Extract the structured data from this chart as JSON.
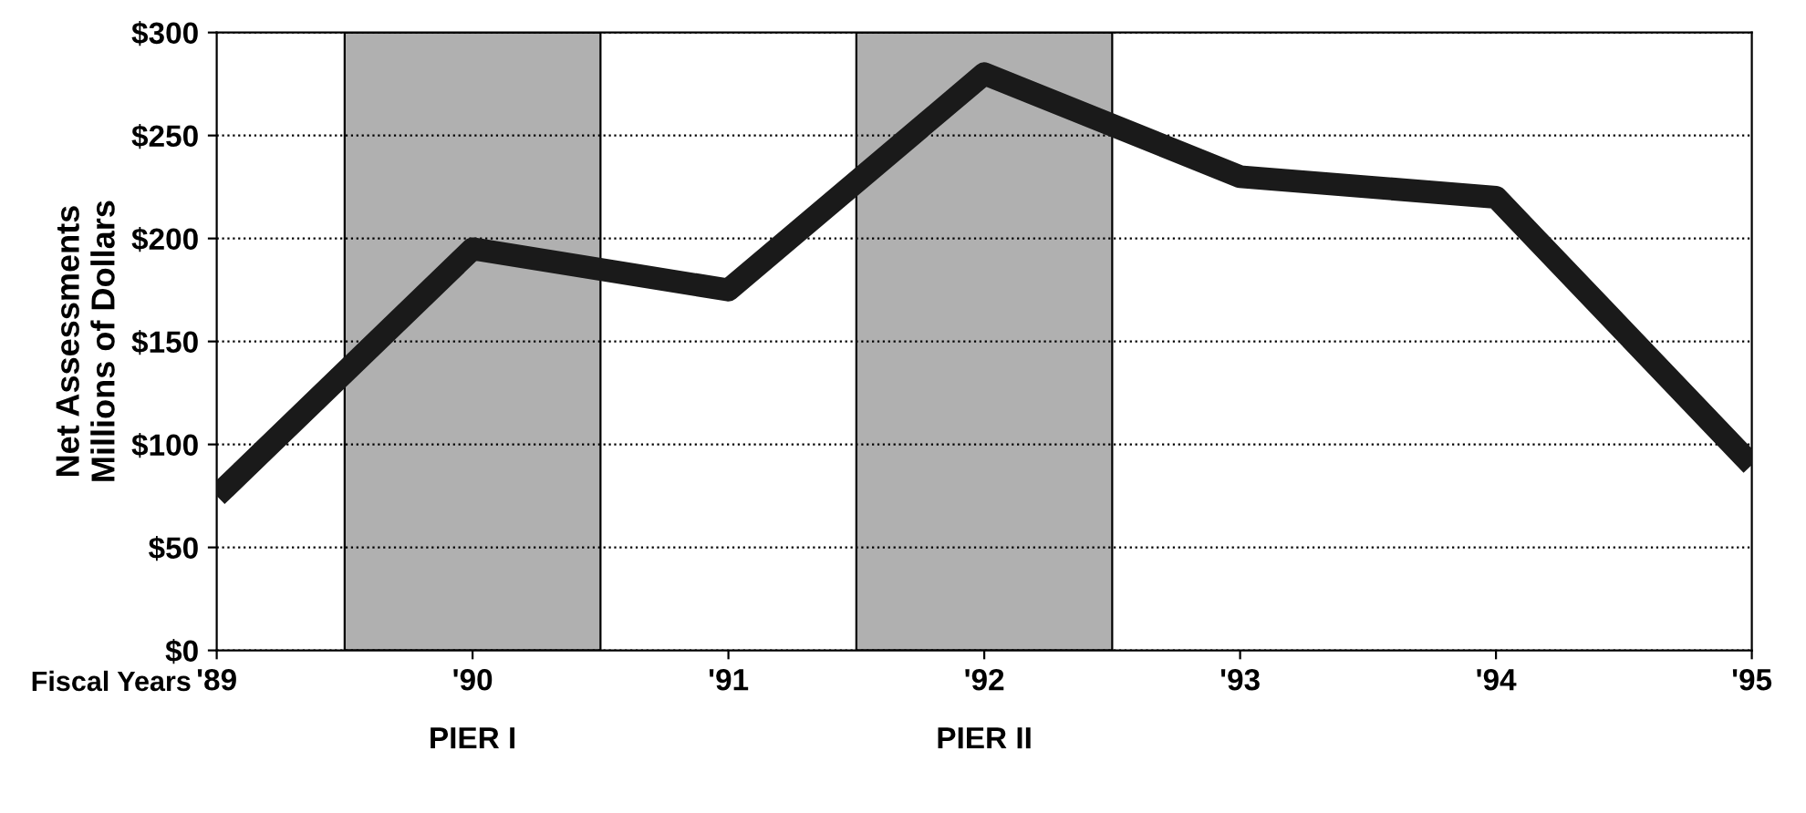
{
  "chart_data": {
    "type": "line",
    "xlabel": "Fiscal Years",
    "ylabel": "Net Assessments\nMillions of Dollars",
    "x": [
      1989,
      1990,
      1991,
      1992,
      1993,
      1994,
      1995
    ],
    "xlim": [
      1989,
      1995
    ],
    "xticks": [
      {
        "value": 1989,
        "label": "'89"
      },
      {
        "value": 1990,
        "label": "'90"
      },
      {
        "value": 1991,
        "label": "'91"
      },
      {
        "value": 1992,
        "label": "'92"
      },
      {
        "value": 1993,
        "label": "'93"
      },
      {
        "value": 1994,
        "label": "'94"
      },
      {
        "value": 1995,
        "label": "'95"
      }
    ],
    "series": [
      {
        "color": "#1a1a1a",
        "values": [
          75,
          195,
          175,
          280,
          230,
          220,
          90
        ]
      }
    ],
    "ylim": [
      0,
      300
    ],
    "yticks": [
      {
        "value": 0,
        "label": "$0"
      },
      {
        "value": 50,
        "label": "$50"
      },
      {
        "value": 100,
        "label": "$100"
      },
      {
        "value": 150,
        "label": "$150"
      },
      {
        "value": 200,
        "label": "$200"
      },
      {
        "value": 250,
        "label": "$250"
      },
      {
        "value": 300,
        "label": "$300"
      }
    ],
    "bands": [
      {
        "axis": "x",
        "from": 1989.5,
        "to": 1990.5,
        "label": "PIER I",
        "color": "#b0b0b0"
      },
      {
        "axis": "x",
        "from": 1991.5,
        "to": 1992.5,
        "label": "PIER II",
        "color": "#b0b0b0"
      }
    ],
    "grid": "y"
  }
}
